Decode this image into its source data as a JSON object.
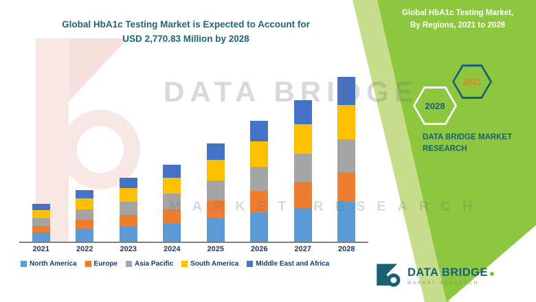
{
  "title": {
    "line1": "Global HbA1c Testing Market is Expected to Account for",
    "line2": "USD 2,770.83 Million by 2028"
  },
  "side_panel": {
    "title_line1": "Global HbA1c Testing Market,",
    "title_line2": "By Regions, 2021 to 2028",
    "hexagons": [
      {
        "year": "2028"
      },
      {
        "year": "2021"
      }
    ],
    "brand_line1": "DATA BRIDGE MARKET",
    "brand_line2": "RESEARCH"
  },
  "watermark": {
    "line1": "DATA BRIDGE",
    "line2": "MARKET RESEARCH"
  },
  "footer_logo": {
    "name": "DATA BRIDGE",
    "subtitle": "MARKET RESEARCH"
  },
  "colors": {
    "panel_green": "#8DC63F",
    "panel_green_light": "#C6DE8C",
    "teal": "#186074",
    "navy": "#1F3864",
    "title_teal": "#1C6577",
    "hex_year_2021_text": "#E87D2B",
    "axis_gray": "#7F7F7F"
  },
  "chart_data": {
    "type": "bar",
    "stacked": true,
    "title": "Global HbA1c Testing Market is Expected to Account for USD 2,770.83 Million by 2028",
    "unit": "USD Million",
    "categories": [
      "2021",
      "2022",
      "2023",
      "2024",
      "2025",
      "2026",
      "2027",
      "2028"
    ],
    "series": [
      {
        "name": "North America",
        "color": "#5B9BD5",
        "values": [
          154,
          209,
          259,
          312,
          396,
          487,
          571,
          665
        ]
      },
      {
        "name": "Europe",
        "color": "#ED7D31",
        "values": [
          115,
          157,
          194,
          234,
          297,
          365,
          428,
          499
        ]
      },
      {
        "name": "Asia Pacific",
        "color": "#A5A5A5",
        "values": [
          128,
          174,
          216,
          260,
          330,
          406,
          476,
          554
        ]
      },
      {
        "name": "South America",
        "color": "#FFC000",
        "values": [
          134,
          183,
          227,
          273,
          347,
          426,
          500,
          582
        ]
      },
      {
        "name": "Middle East and Africa",
        "color": "#4472C4",
        "values": [
          109,
          147,
          184,
          221,
          280,
          346,
          405,
          470.83
        ]
      }
    ],
    "total_2028": 2770.83,
    "ylim": [
      0,
      2800
    ],
    "xlabel": "",
    "ylabel": "",
    "legend_position": "bottom",
    "grid": false,
    "values_estimated": true
  }
}
